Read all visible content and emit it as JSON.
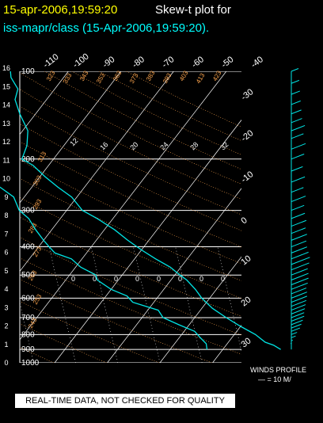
{
  "header": {
    "line1_date": "15-apr-2006,19:59:20",
    "line1_text": "Skew-t plot for",
    "line2_text": "iss-mapr/class (15-Apr-2006,19:59:20)."
  },
  "footer": {
    "winds_label": "WINDS PROFILE",
    "winds_scale": "— = 10 M/",
    "caption": "REAL-TIME DATA, NOT CHECKED FOR QUALITY"
  },
  "colors": {
    "background": "#000000",
    "header_date": "#ffff00",
    "header_text": "#ffffff",
    "header_station": "#00ffff",
    "sounding": "#00e5e5",
    "winds": "#00e5e5",
    "isotherms": "#ffffff",
    "adiabats": "#ffa64d"
  },
  "chart_data": {
    "type": "line",
    "title": "Skew-t plot for iss-mapr/class (15-Apr-2006,19:59:20).",
    "pressure_ticks": [
      1000,
      900,
      800,
      700,
      600,
      500,
      400,
      300,
      200,
      100
    ],
    "height_ticks_km": [
      "0",
      "1",
      "2",
      "3",
      "4",
      "5",
      "6",
      "7",
      "8",
      "9",
      "10",
      "11",
      "12",
      "13",
      "14",
      "15",
      "16"
    ],
    "temperature_ticks_top": [
      "-110",
      "-100",
      "-90",
      "-80",
      "-70",
      "-60",
      "-50",
      "-40"
    ],
    "temperature_ticks_right": [
      "-30",
      "-20",
      "-10",
      "0",
      "10",
      "20",
      "30"
    ],
    "dry_adiabat_labels": [
      "243",
      "253",
      "263",
      "273",
      "283",
      "293",
      "303",
      "313",
      "323",
      "333",
      "343",
      "353",
      "363",
      "373",
      "383",
      "393",
      "403",
      "413",
      "423"
    ],
    "mixing_ratio_labels": [
      "0",
      "0",
      "0",
      "0",
      "0",
      "0",
      "0",
      "0"
    ],
    "moist_adiabat_labels": [
      "12",
      "16",
      "20",
      "24",
      "28",
      "32"
    ],
    "series": [
      {
        "variable": "temperature_C",
        "pressure": [
          900,
          870,
          850,
          800,
          750,
          700,
          650,
          600,
          560,
          520,
          500,
          470,
          440,
          410,
          380,
          350,
          320,
          300,
          270,
          250,
          230,
          210,
          200,
          180,
          160,
          140,
          125,
          115,
          105,
          100
        ],
        "value": [
          21,
          19,
          17,
          14,
          10,
          6,
          2,
          -1.5,
          -4,
          -7,
          -9,
          -12,
          -16,
          -20,
          -24,
          -28,
          -33,
          -37,
          -41,
          -45,
          -49,
          -53,
          -56,
          -57,
          -59,
          -63,
          -66,
          -67,
          -70,
          -71
        ]
      },
      {
        "variable": "dewpoint_C",
        "pressure": [
          900,
          860,
          820,
          780,
          740,
          700,
          660,
          620,
          590,
          560,
          520,
          500,
          470,
          440,
          420,
          400,
          380,
          350,
          320,
          300,
          270,
          250,
          230,
          210,
          200,
          180,
          165,
          150,
          130,
          115,
          100
        ],
        "value": [
          7,
          6,
          4,
          2,
          -2,
          -6,
          -8,
          -14,
          -16,
          -20,
          -24,
          -25,
          -29,
          -32,
          -36,
          -38,
          -40,
          -43,
          -46,
          -49,
          -52,
          -56,
          -62,
          -67,
          -70,
          -75,
          -80,
          -75,
          -79,
          -76,
          -73
        ]
      }
    ],
    "winds_profile": {
      "pressure": [
        900,
        880,
        860,
        840,
        820,
        800,
        780,
        760,
        740,
        720,
        700,
        680,
        660,
        640,
        620,
        600,
        580,
        560,
        540,
        520,
        500,
        480,
        460,
        440,
        420,
        400,
        380,
        360,
        340,
        320,
        300,
        280,
        260,
        240,
        220,
        200,
        185,
        170,
        160,
        150,
        140,
        130,
        120,
        110,
        100
      ],
      "east_component": [
        0,
        0,
        -1,
        2,
        6,
        8,
        12,
        14,
        16,
        18,
        18,
        19,
        20,
        21,
        22,
        22,
        21,
        23,
        24,
        24,
        23,
        25,
        26,
        24,
        22,
        21,
        22,
        20,
        21,
        19,
        18,
        20,
        17,
        19,
        16,
        18,
        20,
        17,
        19,
        15,
        14,
        13,
        12,
        11,
        10
      ]
    }
  }
}
